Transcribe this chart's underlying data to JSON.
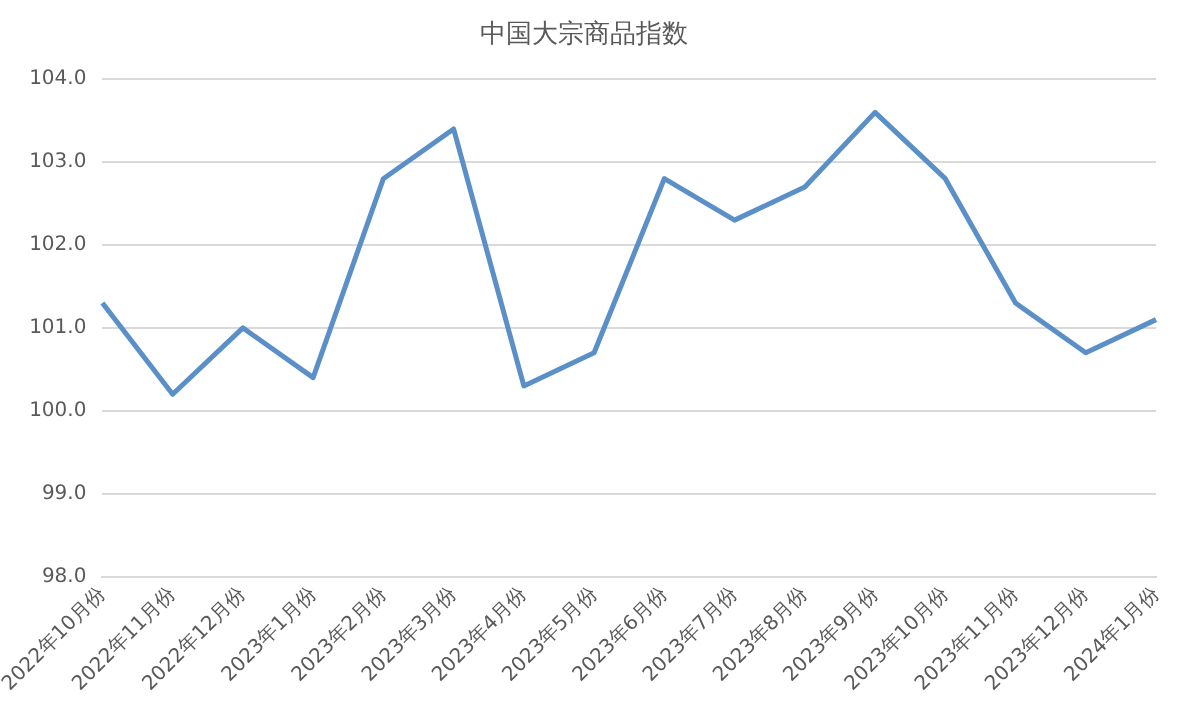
{
  "chart_data": {
    "type": "line",
    "title": "中国大宗商品指数",
    "categories": [
      "2022年10月份",
      "2022年11月份",
      "2022年12月份",
      "2023年1月份",
      "2023年2月份",
      "2023年3月份",
      "2023年4月份",
      "2023年5月份",
      "2023年6月份",
      "2023年7月份",
      "2023年8月份",
      "2023年9月份",
      "2023年10月份",
      "2023年11月份",
      "2023年12月份",
      "2024年1月份"
    ],
    "series": [
      {
        "color": "#5b8fc7",
        "values": [
          101.3,
          100.2,
          101.0,
          100.4,
          102.8,
          103.4,
          100.3,
          100.7,
          102.8,
          102.3,
          102.7,
          103.6,
          102.8,
          101.3,
          100.7,
          101.1
        ]
      }
    ],
    "ylim": [
      98,
      104
    ],
    "yticks": [
      {
        "value": 98,
        "label": "98.0"
      },
      {
        "value": 99,
        "label": "99.0"
      },
      {
        "value": 100,
        "label": "100.0"
      },
      {
        "value": 101,
        "label": "101.0"
      },
      {
        "value": 102,
        "label": "102.0"
      },
      {
        "value": 103,
        "label": "103.0"
      },
      {
        "value": 104,
        "label": "104.0"
      }
    ],
    "grid": "y",
    "legend": false,
    "marker": "none",
    "line_style": "solid"
  }
}
